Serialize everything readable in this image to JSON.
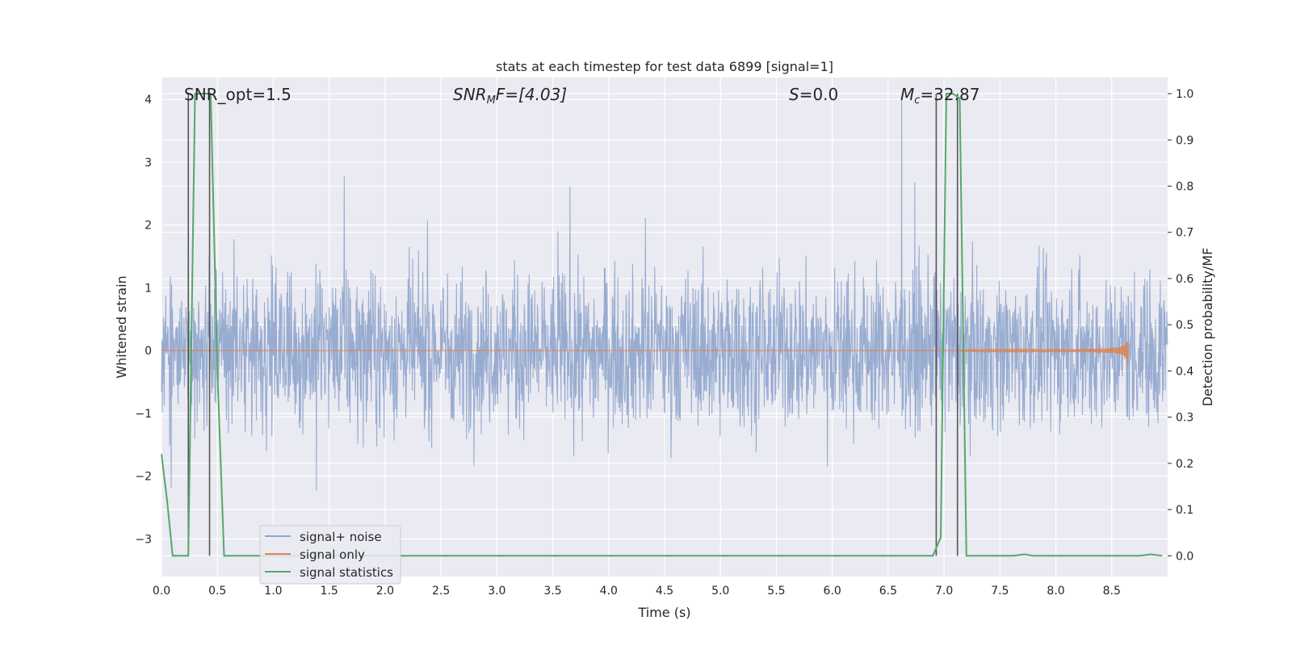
{
  "chart_data": {
    "type": "line",
    "title": "stats at each timestep for test data 6899 [signal=1]",
    "xlabel": "Time (s)",
    "ylabel_left": "Whitened strain",
    "ylabel_right": "Detection probability/MF",
    "xlim": [
      0,
      9.0
    ],
    "ylim_left": [
      -3.6,
      4.35
    ],
    "ylim_right": [
      -0.045,
      1.035
    ],
    "x_ticks": [
      "0.0",
      "0.5",
      "1.0",
      "1.5",
      "2.0",
      "2.5",
      "3.0",
      "3.5",
      "4.0",
      "4.5",
      "5.0",
      "5.5",
      "6.0",
      "6.5",
      "7.0",
      "7.5",
      "8.0",
      "8.5"
    ],
    "y_left_ticks": [
      "4",
      "3",
      "2",
      "1",
      "0",
      "−1",
      "−2",
      "−3"
    ],
    "y_right_ticks": [
      "1.0",
      "0.9",
      "0.8",
      "0.7",
      "0.6",
      "0.5",
      "0.4",
      "0.3",
      "0.2",
      "0.1",
      "0.0"
    ],
    "grid": true,
    "annotations": {
      "snr_opt": "SNR_opt=1.5",
      "snr_mf_main": "SNR",
      "snr_mf_sub": "M",
      "snr_mf_rest": "F=[4.03]",
      "s_var": "S",
      "s_rest": "=0.0",
      "mc_var": "M",
      "mc_sub": "c",
      "mc_rest": "=32.87"
    },
    "series": [
      {
        "name": "signal+ noise",
        "color": "#8fa5cc",
        "note": "whitened strain noise, approx. range -2.3 to 3.3, peaks 4.0 near t=6.62"
      },
      {
        "name": "signal only",
        "color": "#dd8452",
        "chirp_end_x": 8.65,
        "chirp_peak_amplitude": 0.3
      },
      {
        "name": "signal statistics",
        "color": "#55a868",
        "x": [
          0.0,
          0.05,
          0.1,
          0.2,
          0.24,
          0.3,
          0.33,
          0.4,
          0.44,
          0.5,
          0.56,
          1.0,
          2.0,
          3.0,
          4.0,
          5.0,
          6.0,
          6.5,
          6.9,
          6.97,
          7.02,
          7.08,
          7.14,
          7.2,
          7.25,
          7.5,
          7.62,
          7.72,
          7.8,
          8.0,
          8.5,
          8.75,
          8.85,
          8.95
        ],
        "y": [
          0.22,
          0.12,
          0.0,
          0.0,
          0.0,
          1.0,
          1.0,
          1.0,
          1.0,
          0.4,
          0.0,
          0.0,
          0.0,
          0.0,
          0.0,
          0.0,
          0.0,
          0.0,
          0.0,
          0.04,
          1.0,
          1.0,
          0.99,
          0.0,
          0.0,
          0.0,
          0.0,
          0.003,
          0.0,
          0.0,
          0.0,
          0.0,
          0.003,
          0.0
        ]
      }
    ],
    "vertical_lines": [
      0.24,
      0.43,
      6.93,
      7.12
    ],
    "legend": {
      "placement": "lower-left",
      "entries": [
        "signal+ noise",
        "signal only",
        "signal statistics"
      ]
    }
  }
}
